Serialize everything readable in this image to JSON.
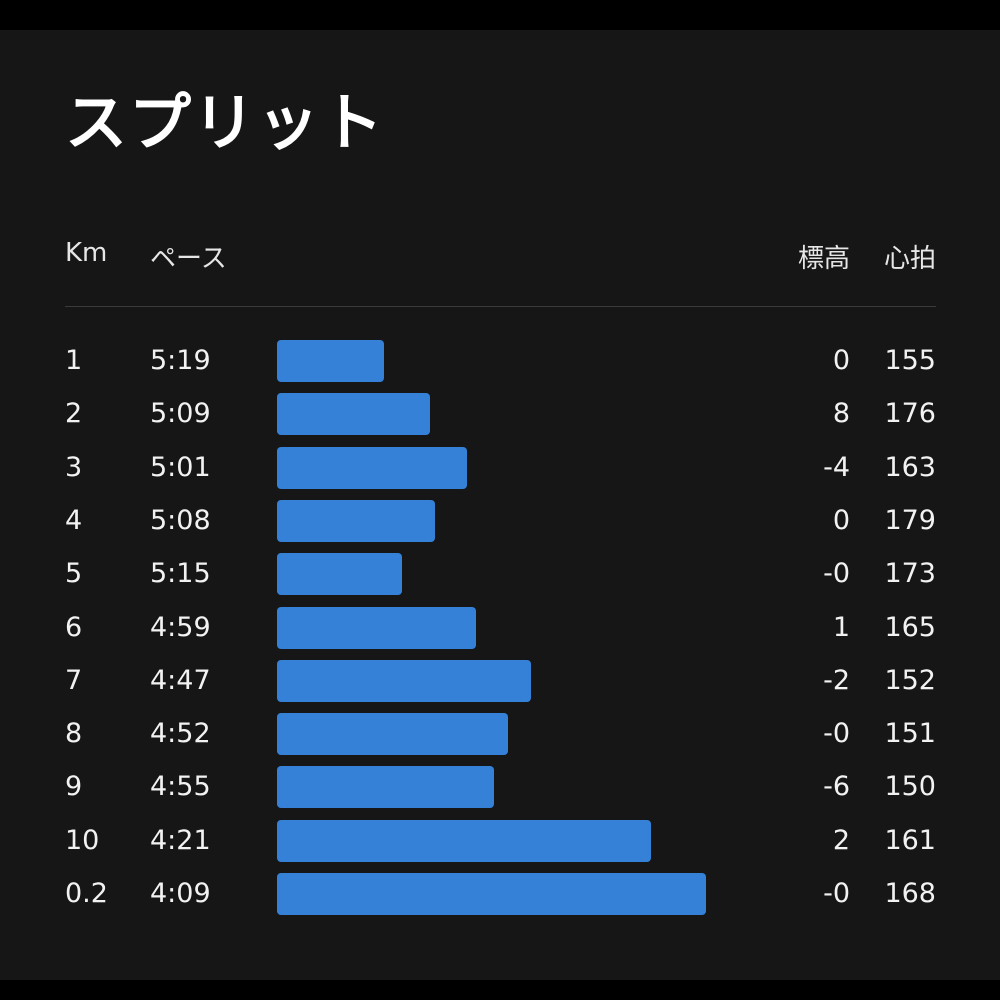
{
  "title": "スプリット",
  "columns": {
    "km": "Km",
    "pace": "ペース",
    "elevation": "標高",
    "heart_rate": "心拍"
  },
  "bar_color": "#3681d8",
  "rows": [
    {
      "km": "1",
      "pace": "5:19",
      "pace_seconds": 319,
      "elevation": "0",
      "heart_rate": "155"
    },
    {
      "km": "2",
      "pace": "5:09",
      "pace_seconds": 309,
      "elevation": "8",
      "heart_rate": "176"
    },
    {
      "km": "3",
      "pace": "5:01",
      "pace_seconds": 301,
      "elevation": "-4",
      "heart_rate": "163"
    },
    {
      "km": "4",
      "pace": "5:08",
      "pace_seconds": 308,
      "elevation": "0",
      "heart_rate": "179"
    },
    {
      "km": "5",
      "pace": "5:15",
      "pace_seconds": 315,
      "elevation": "-0",
      "heart_rate": "173"
    },
    {
      "km": "6",
      "pace": "4:59",
      "pace_seconds": 299,
      "elevation": "1",
      "heart_rate": "165"
    },
    {
      "km": "7",
      "pace": "4:47",
      "pace_seconds": 287,
      "elevation": "-2",
      "heart_rate": "152"
    },
    {
      "km": "8",
      "pace": "4:52",
      "pace_seconds": 292,
      "elevation": "-0",
      "heart_rate": "151"
    },
    {
      "km": "9",
      "pace": "4:55",
      "pace_seconds": 295,
      "elevation": "-6",
      "heart_rate": "150"
    },
    {
      "km": "10",
      "pace": "4:21",
      "pace_seconds": 261,
      "elevation": "2",
      "heart_rate": "161"
    },
    {
      "km": "0.2",
      "pace": "4:09",
      "pace_seconds": 249,
      "elevation": "-0",
      "heart_rate": "168"
    }
  ]
}
